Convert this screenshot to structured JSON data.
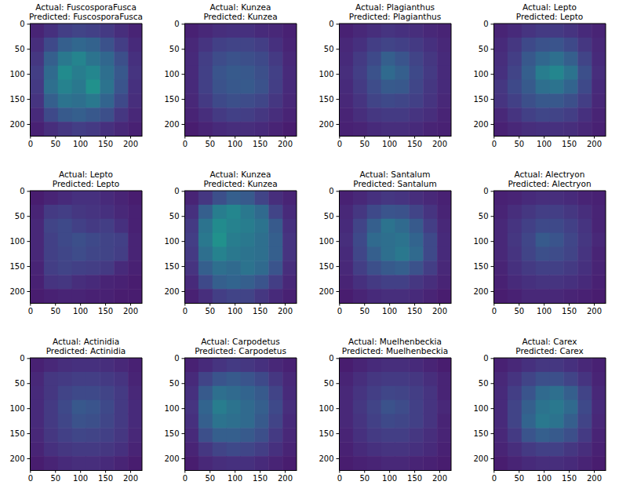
{
  "chart_data": [
    {
      "type": "heatmap",
      "title": [
        "Actual: FuscosporaFusca",
        "Predicted: FuscosporaFusca"
      ],
      "xlim": [
        -0.5,
        223.5
      ],
      "ylim": [
        223.5,
        -0.5
      ],
      "xticks": [
        0,
        50,
        100,
        150,
        200
      ],
      "yticks": [
        0,
        50,
        100,
        150,
        200
      ],
      "color": "viridis",
      "cells": [
        [
          0.1,
          0.14,
          0.18,
          0.2,
          0.19,
          0.17,
          0.13,
          0.1
        ],
        [
          0.13,
          0.22,
          0.3,
          0.33,
          0.31,
          0.25,
          0.18,
          0.12
        ],
        [
          0.16,
          0.3,
          0.4,
          0.45,
          0.38,
          0.33,
          0.24,
          0.14
        ],
        [
          0.18,
          0.34,
          0.48,
          0.42,
          0.46,
          0.36,
          0.27,
          0.15
        ],
        [
          0.17,
          0.36,
          0.44,
          0.4,
          0.5,
          0.38,
          0.26,
          0.14
        ],
        [
          0.15,
          0.3,
          0.38,
          0.36,
          0.4,
          0.32,
          0.22,
          0.13
        ],
        [
          0.12,
          0.22,
          0.28,
          0.3,
          0.27,
          0.24,
          0.16,
          0.11
        ],
        [
          0.09,
          0.13,
          0.16,
          0.18,
          0.17,
          0.14,
          0.11,
          0.09
        ]
      ]
    },
    {
      "type": "heatmap",
      "title": [
        "Actual: Kunzea",
        "Predicted: Kunzea"
      ],
      "xlim": [
        -0.5,
        223.5
      ],
      "ylim": [
        223.5,
        -0.5
      ],
      "xticks": [
        0,
        50,
        100,
        150,
        200
      ],
      "yticks": [
        0,
        50,
        100,
        150,
        200
      ],
      "color": "viridis",
      "cells": [
        [
          0.09,
          0.11,
          0.13,
          0.14,
          0.14,
          0.12,
          0.11,
          0.09
        ],
        [
          0.11,
          0.15,
          0.19,
          0.2,
          0.2,
          0.18,
          0.14,
          0.1
        ],
        [
          0.12,
          0.18,
          0.23,
          0.25,
          0.24,
          0.22,
          0.17,
          0.11
        ],
        [
          0.12,
          0.19,
          0.26,
          0.28,
          0.27,
          0.24,
          0.19,
          0.12
        ],
        [
          0.12,
          0.19,
          0.25,
          0.27,
          0.28,
          0.25,
          0.18,
          0.12
        ],
        [
          0.11,
          0.17,
          0.22,
          0.24,
          0.23,
          0.21,
          0.16,
          0.11
        ],
        [
          0.1,
          0.13,
          0.17,
          0.19,
          0.18,
          0.16,
          0.13,
          0.1
        ],
        [
          0.08,
          0.1,
          0.12,
          0.13,
          0.13,
          0.12,
          0.1,
          0.08
        ]
      ]
    },
    {
      "type": "heatmap",
      "title": [
        "Actual: Plagianthus",
        "Predicted: Plagianthus"
      ],
      "xlim": [
        -0.5,
        223.5
      ],
      "ylim": [
        223.5,
        -0.5
      ],
      "xticks": [
        0,
        50,
        100,
        150,
        200
      ],
      "yticks": [
        0,
        50,
        100,
        150,
        200
      ],
      "color": "viridis",
      "cells": [
        [
          0.09,
          0.11,
          0.13,
          0.15,
          0.14,
          0.13,
          0.11,
          0.1
        ],
        [
          0.11,
          0.14,
          0.18,
          0.2,
          0.19,
          0.17,
          0.14,
          0.11
        ],
        [
          0.12,
          0.17,
          0.22,
          0.3,
          0.26,
          0.2,
          0.16,
          0.12
        ],
        [
          0.13,
          0.18,
          0.25,
          0.34,
          0.3,
          0.22,
          0.17,
          0.12
        ],
        [
          0.12,
          0.17,
          0.23,
          0.28,
          0.27,
          0.21,
          0.16,
          0.12
        ],
        [
          0.11,
          0.15,
          0.2,
          0.22,
          0.21,
          0.19,
          0.15,
          0.11
        ],
        [
          0.1,
          0.13,
          0.16,
          0.17,
          0.17,
          0.15,
          0.13,
          0.1
        ],
        [
          0.09,
          0.1,
          0.12,
          0.13,
          0.13,
          0.12,
          0.1,
          0.09
        ]
      ]
    },
    {
      "type": "heatmap",
      "title": [
        "Actual: Lepto",
        "Predicted: Lepto"
      ],
      "xlim": [
        -0.5,
        223.5
      ],
      "ylim": [
        223.5,
        -0.5
      ],
      "xticks": [
        0,
        50,
        100,
        150,
        200
      ],
      "yticks": [
        0,
        50,
        100,
        150,
        200
      ],
      "color": "viridis",
      "cells": [
        [
          0.1,
          0.12,
          0.15,
          0.17,
          0.17,
          0.15,
          0.12,
          0.1
        ],
        [
          0.12,
          0.16,
          0.22,
          0.25,
          0.26,
          0.22,
          0.16,
          0.11
        ],
        [
          0.13,
          0.18,
          0.27,
          0.33,
          0.36,
          0.3,
          0.2,
          0.12
        ],
        [
          0.14,
          0.2,
          0.3,
          0.42,
          0.46,
          0.38,
          0.24,
          0.13
        ],
        [
          0.16,
          0.22,
          0.28,
          0.36,
          0.38,
          0.32,
          0.22,
          0.12
        ],
        [
          0.15,
          0.19,
          0.24,
          0.27,
          0.27,
          0.24,
          0.18,
          0.11
        ],
        [
          0.11,
          0.15,
          0.19,
          0.21,
          0.2,
          0.18,
          0.14,
          0.1
        ],
        [
          0.09,
          0.11,
          0.13,
          0.14,
          0.14,
          0.13,
          0.11,
          0.09
        ]
      ]
    },
    {
      "type": "heatmap",
      "title": [
        "Actual: Lepto",
        "Predicted: Lepto"
      ],
      "xlim": [
        -0.5,
        223.5
      ],
      "ylim": [
        223.5,
        -0.5
      ],
      "xticks": [
        0,
        50,
        100,
        150,
        200
      ],
      "yticks": [
        0,
        50,
        100,
        150,
        200
      ],
      "color": "viridis",
      "cells": [
        [
          0.08,
          0.1,
          0.12,
          0.14,
          0.14,
          0.12,
          0.1,
          0.08
        ],
        [
          0.1,
          0.17,
          0.18,
          0.16,
          0.15,
          0.14,
          0.11,
          0.09
        ],
        [
          0.11,
          0.2,
          0.22,
          0.19,
          0.17,
          0.18,
          0.14,
          0.09
        ],
        [
          0.11,
          0.19,
          0.22,
          0.24,
          0.22,
          0.2,
          0.19,
          0.1
        ],
        [
          0.11,
          0.19,
          0.21,
          0.23,
          0.21,
          0.2,
          0.18,
          0.1
        ],
        [
          0.1,
          0.18,
          0.2,
          0.19,
          0.18,
          0.17,
          0.12,
          0.09
        ],
        [
          0.09,
          0.15,
          0.16,
          0.13,
          0.12,
          0.1,
          0.09,
          0.08
        ],
        [
          0.08,
          0.09,
          0.1,
          0.1,
          0.09,
          0.09,
          0.08,
          0.08
        ]
      ]
    },
    {
      "type": "heatmap",
      "title": [
        "Actual: Kunzea",
        "Predicted: Kunzea"
      ],
      "xlim": [
        -0.5,
        223.5
      ],
      "ylim": [
        223.5,
        -0.5
      ],
      "xticks": [
        0,
        50,
        100,
        150,
        200
      ],
      "yticks": [
        0,
        50,
        100,
        150,
        200
      ],
      "color": "viridis",
      "cells": [
        [
          0.1,
          0.16,
          0.24,
          0.3,
          0.28,
          0.2,
          0.13,
          0.1
        ],
        [
          0.14,
          0.3,
          0.42,
          0.46,
          0.4,
          0.34,
          0.2,
          0.12
        ],
        [
          0.17,
          0.38,
          0.48,
          0.44,
          0.42,
          0.38,
          0.28,
          0.14
        ],
        [
          0.18,
          0.4,
          0.5,
          0.42,
          0.4,
          0.36,
          0.3,
          0.15
        ],
        [
          0.17,
          0.36,
          0.44,
          0.4,
          0.38,
          0.36,
          0.3,
          0.15
        ],
        [
          0.15,
          0.3,
          0.36,
          0.34,
          0.38,
          0.34,
          0.26,
          0.13
        ],
        [
          0.12,
          0.22,
          0.3,
          0.32,
          0.3,
          0.26,
          0.18,
          0.11
        ],
        [
          0.09,
          0.13,
          0.18,
          0.2,
          0.2,
          0.16,
          0.12,
          0.09
        ]
      ]
    },
    {
      "type": "heatmap",
      "title": [
        "Actual: Santalum",
        "Predicted: Santalum"
      ],
      "xlim": [
        -0.5,
        223.5
      ],
      "ylim": [
        223.5,
        -0.5
      ],
      "xticks": [
        0,
        50,
        100,
        150,
        200
      ],
      "yticks": [
        0,
        50,
        100,
        150,
        200
      ],
      "color": "viridis",
      "cells": [
        [
          0.09,
          0.11,
          0.14,
          0.16,
          0.15,
          0.13,
          0.11,
          0.09
        ],
        [
          0.11,
          0.16,
          0.22,
          0.26,
          0.25,
          0.2,
          0.15,
          0.1
        ],
        [
          0.12,
          0.2,
          0.3,
          0.38,
          0.34,
          0.28,
          0.18,
          0.11
        ],
        [
          0.13,
          0.22,
          0.34,
          0.36,
          0.38,
          0.32,
          0.22,
          0.12
        ],
        [
          0.12,
          0.21,
          0.3,
          0.36,
          0.4,
          0.34,
          0.22,
          0.12
        ],
        [
          0.11,
          0.18,
          0.24,
          0.28,
          0.3,
          0.25,
          0.18,
          0.11
        ],
        [
          0.1,
          0.14,
          0.17,
          0.19,
          0.19,
          0.16,
          0.13,
          0.1
        ],
        [
          0.08,
          0.1,
          0.12,
          0.13,
          0.13,
          0.12,
          0.1,
          0.08
        ]
      ]
    },
    {
      "type": "heatmap",
      "title": [
        "Actual: Alectryon",
        "Predicted: Alectryon"
      ],
      "xlim": [
        -0.5,
        223.5
      ],
      "ylim": [
        223.5,
        -0.5
      ],
      "xticks": [
        0,
        50,
        100,
        150,
        200
      ],
      "yticks": [
        0,
        50,
        100,
        150,
        200
      ],
      "color": "viridis",
      "cells": [
        [
          0.09,
          0.1,
          0.12,
          0.13,
          0.13,
          0.12,
          0.1,
          0.09
        ],
        [
          0.1,
          0.13,
          0.16,
          0.18,
          0.18,
          0.16,
          0.13,
          0.1
        ],
        [
          0.11,
          0.15,
          0.19,
          0.22,
          0.22,
          0.19,
          0.15,
          0.1
        ],
        [
          0.11,
          0.16,
          0.21,
          0.28,
          0.26,
          0.21,
          0.16,
          0.11
        ],
        [
          0.11,
          0.15,
          0.2,
          0.24,
          0.23,
          0.2,
          0.15,
          0.1
        ],
        [
          0.1,
          0.14,
          0.17,
          0.19,
          0.19,
          0.17,
          0.14,
          0.1
        ],
        [
          0.09,
          0.12,
          0.14,
          0.15,
          0.15,
          0.14,
          0.12,
          0.09
        ],
        [
          0.08,
          0.09,
          0.11,
          0.11,
          0.11,
          0.1,
          0.09,
          0.08
        ]
      ]
    },
    {
      "type": "heatmap",
      "title": [
        "Actual: Actinidia",
        "Predicted: Actinidia"
      ],
      "xlim": [
        -0.5,
        223.5
      ],
      "ylim": [
        223.5,
        -0.5
      ],
      "xticks": [
        0,
        50,
        100,
        150,
        200
      ],
      "yticks": [
        0,
        50,
        100,
        150,
        200
      ],
      "color": "viridis",
      "cells": [
        [
          0.09,
          0.11,
          0.13,
          0.14,
          0.14,
          0.13,
          0.11,
          0.09
        ],
        [
          0.11,
          0.16,
          0.17,
          0.18,
          0.18,
          0.17,
          0.15,
          0.1
        ],
        [
          0.12,
          0.16,
          0.2,
          0.22,
          0.22,
          0.2,
          0.17,
          0.11
        ],
        [
          0.12,
          0.17,
          0.22,
          0.27,
          0.26,
          0.22,
          0.17,
          0.12
        ],
        [
          0.12,
          0.17,
          0.21,
          0.25,
          0.24,
          0.21,
          0.17,
          0.12
        ],
        [
          0.11,
          0.16,
          0.19,
          0.21,
          0.2,
          0.19,
          0.16,
          0.11
        ],
        [
          0.1,
          0.14,
          0.16,
          0.17,
          0.17,
          0.16,
          0.14,
          0.1
        ],
        [
          0.08,
          0.1,
          0.12,
          0.13,
          0.13,
          0.12,
          0.1,
          0.08
        ]
      ]
    },
    {
      "type": "heatmap",
      "title": [
        "Actual: Carpodetus",
        "Predicted: Carpodetus"
      ],
      "xlim": [
        -0.5,
        223.5
      ],
      "ylim": [
        223.5,
        -0.5
      ],
      "xticks": [
        0,
        50,
        100,
        150,
        200
      ],
      "yticks": [
        0,
        50,
        100,
        150,
        200
      ],
      "color": "viridis",
      "cells": [
        [
          0.09,
          0.12,
          0.15,
          0.17,
          0.16,
          0.14,
          0.11,
          0.09
        ],
        [
          0.12,
          0.2,
          0.26,
          0.28,
          0.26,
          0.22,
          0.16,
          0.11
        ],
        [
          0.14,
          0.28,
          0.36,
          0.34,
          0.32,
          0.28,
          0.2,
          0.12
        ],
        [
          0.15,
          0.32,
          0.42,
          0.38,
          0.34,
          0.3,
          0.22,
          0.13
        ],
        [
          0.14,
          0.3,
          0.38,
          0.36,
          0.34,
          0.28,
          0.2,
          0.12
        ],
        [
          0.12,
          0.24,
          0.3,
          0.3,
          0.28,
          0.24,
          0.17,
          0.11
        ],
        [
          0.1,
          0.16,
          0.2,
          0.22,
          0.21,
          0.18,
          0.14,
          0.1
        ],
        [
          0.08,
          0.11,
          0.13,
          0.14,
          0.14,
          0.12,
          0.1,
          0.08
        ]
      ]
    },
    {
      "type": "heatmap",
      "title": [
        "Actual: Muelhenbeckia",
        "Predicted: Muelhenbeckia"
      ],
      "xlim": [
        -0.5,
        223.5
      ],
      "ylim": [
        223.5,
        -0.5
      ],
      "xticks": [
        0,
        50,
        100,
        150,
        200
      ],
      "yticks": [
        0,
        50,
        100,
        150,
        200
      ],
      "color": "viridis",
      "cells": [
        [
          0.08,
          0.1,
          0.12,
          0.13,
          0.13,
          0.12,
          0.1,
          0.08
        ],
        [
          0.1,
          0.13,
          0.16,
          0.17,
          0.17,
          0.16,
          0.13,
          0.1
        ],
        [
          0.11,
          0.15,
          0.18,
          0.21,
          0.2,
          0.18,
          0.15,
          0.1
        ],
        [
          0.11,
          0.16,
          0.2,
          0.25,
          0.23,
          0.19,
          0.15,
          0.11
        ],
        [
          0.11,
          0.15,
          0.19,
          0.22,
          0.21,
          0.19,
          0.15,
          0.1
        ],
        [
          0.1,
          0.14,
          0.17,
          0.18,
          0.18,
          0.16,
          0.13,
          0.1
        ],
        [
          0.09,
          0.12,
          0.14,
          0.15,
          0.15,
          0.14,
          0.12,
          0.09
        ],
        [
          0.08,
          0.09,
          0.1,
          0.11,
          0.11,
          0.1,
          0.09,
          0.08
        ]
      ]
    },
    {
      "type": "heatmap",
      "title": [
        "Actual: Carex",
        "Predicted: Carex"
      ],
      "xlim": [
        -0.5,
        223.5
      ],
      "ylim": [
        223.5,
        -0.5
      ],
      "xticks": [
        0,
        50,
        100,
        150,
        200
      ],
      "yticks": [
        0,
        50,
        100,
        150,
        200
      ],
      "color": "viridis",
      "cells": [
        [
          0.09,
          0.11,
          0.14,
          0.16,
          0.16,
          0.14,
          0.11,
          0.09
        ],
        [
          0.11,
          0.15,
          0.2,
          0.24,
          0.24,
          0.2,
          0.15,
          0.1
        ],
        [
          0.12,
          0.18,
          0.26,
          0.34,
          0.36,
          0.3,
          0.2,
          0.11
        ],
        [
          0.12,
          0.2,
          0.3,
          0.38,
          0.4,
          0.34,
          0.22,
          0.12
        ],
        [
          0.12,
          0.2,
          0.32,
          0.4,
          0.38,
          0.3,
          0.2,
          0.11
        ],
        [
          0.11,
          0.17,
          0.26,
          0.3,
          0.28,
          0.24,
          0.17,
          0.1
        ],
        [
          0.1,
          0.13,
          0.17,
          0.19,
          0.19,
          0.16,
          0.13,
          0.09
        ],
        [
          0.08,
          0.1,
          0.12,
          0.13,
          0.13,
          0.12,
          0.1,
          0.08
        ]
      ]
    }
  ]
}
